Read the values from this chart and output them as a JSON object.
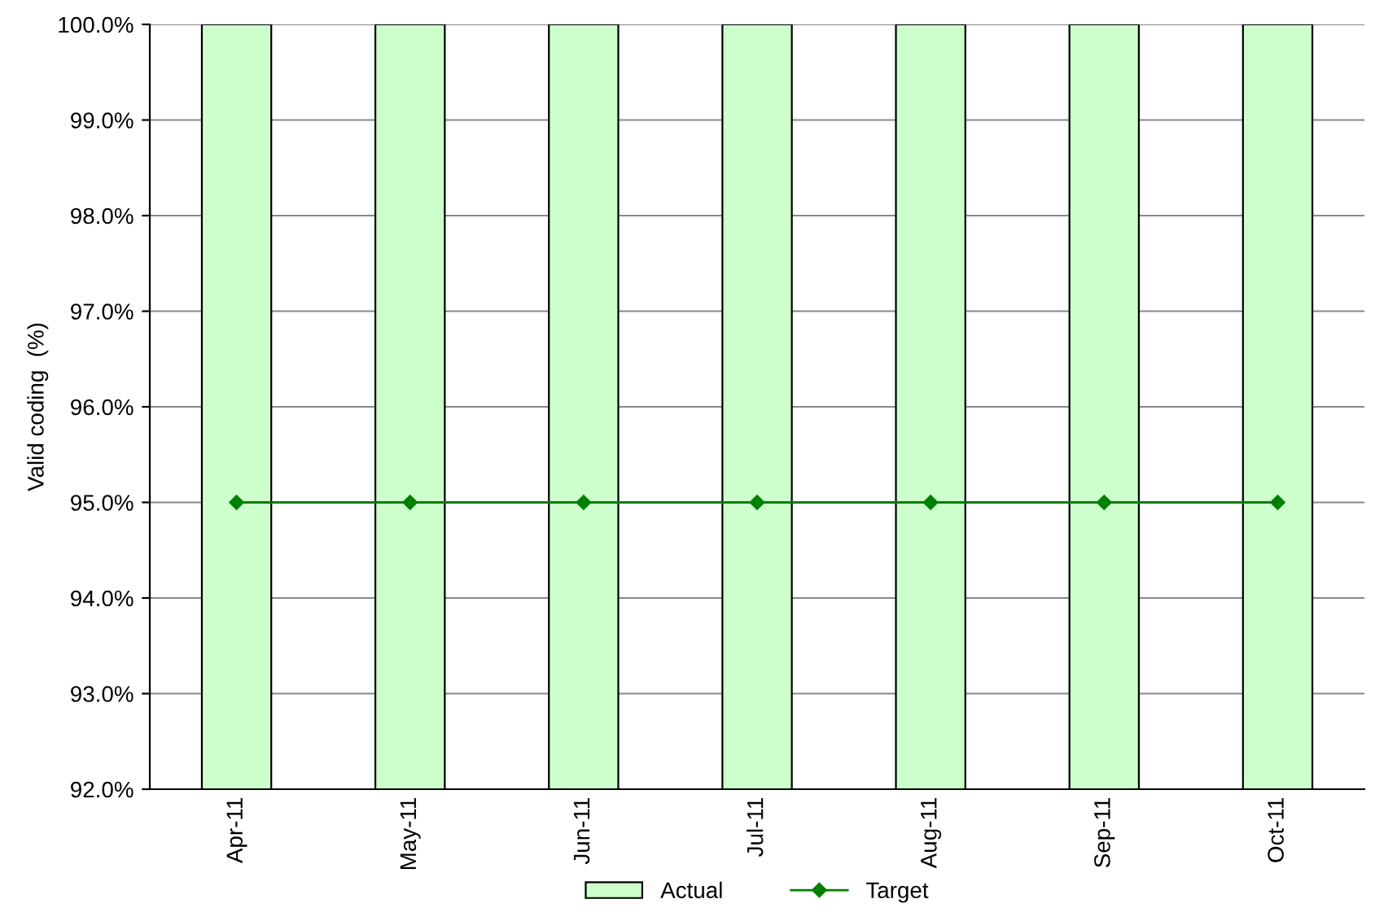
{
  "chart_data": {
    "type": "bar",
    "ylabel": "Valid coding  (%)",
    "categories": [
      "Apr-11",
      "May-11",
      "Jun-11",
      "Jul-11",
      "Aug-11",
      "Sep-11",
      "Oct-11"
    ],
    "series": [
      {
        "name": "Actual",
        "color": "#ccffcc",
        "values": [
          100,
          100,
          100,
          100,
          100,
          100,
          100
        ]
      },
      {
        "name": "Target",
        "type": "line",
        "color": "#008000",
        "marker": "diamond",
        "values": [
          95,
          95,
          95,
          95,
          95,
          95,
          95
        ]
      }
    ],
    "ylim": [
      92,
      100
    ],
    "yticks": [
      {
        "value": 92,
        "label": "92.0%"
      },
      {
        "value": 93,
        "label": "93.0%"
      },
      {
        "value": 94,
        "label": "94.0%"
      },
      {
        "value": 95,
        "label": "95.0%"
      },
      {
        "value": 96,
        "label": "96.0%"
      },
      {
        "value": 97,
        "label": "97.0%"
      },
      {
        "value": 98,
        "label": "98.0%"
      },
      {
        "value": 99,
        "label": "99.0%"
      },
      {
        "value": 100,
        "label": "100.0%"
      }
    ],
    "grid": "y",
    "legend": "bottom"
  }
}
